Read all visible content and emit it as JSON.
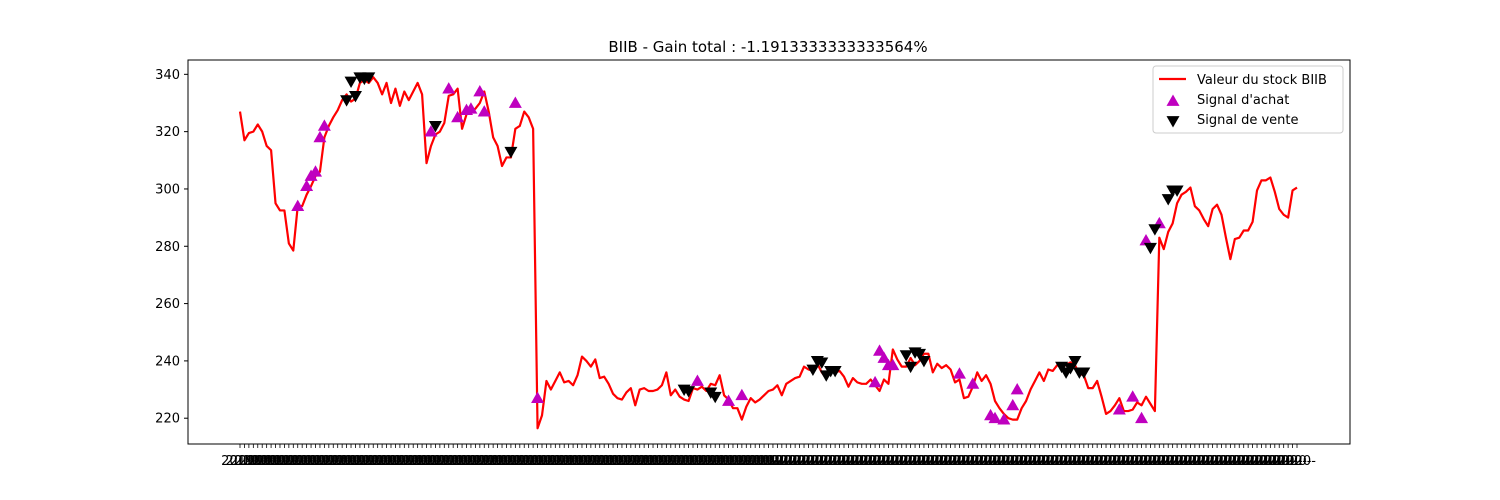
{
  "chart_data": {
    "type": "line",
    "title": "BIIB - Gain total : -1.1913333333333564%",
    "xlabel": "",
    "ylabel": "",
    "ylim": [
      211,
      345
    ],
    "yticks": [
      220,
      240,
      260,
      280,
      300,
      320,
      340
    ],
    "x_tick_labels_visible": [
      "2019-",
      "2020-"
    ],
    "legend_position": "top-right",
    "colors": {
      "line": "#ff0000",
      "buy": "#bf00bf",
      "sell": "#000000",
      "legend_border": "#cccccc"
    },
    "series": [
      {
        "name": "Valeur du stock BIIB",
        "kind": "line",
        "values": [
          327,
          317,
          319.5,
          320,
          322.5,
          320,
          315,
          313.5,
          295,
          292.5,
          292.5,
          281,
          278.5,
          294,
          294,
          298,
          301,
          304.5,
          306,
          318,
          322,
          325,
          327.5,
          331,
          333,
          330.5,
          331.5,
          337,
          338,
          337,
          339,
          337,
          333,
          337,
          330,
          335,
          329,
          334,
          331,
          334,
          337,
          333,
          309,
          315,
          319,
          320,
          323,
          332.5,
          333,
          335,
          321,
          326,
          327,
          328,
          330,
          334,
          327,
          318,
          315,
          308,
          311,
          311,
          321,
          322,
          327,
          325,
          321,
          216.5,
          221,
          233,
          230,
          233,
          236,
          232.5,
          233,
          231.5,
          235,
          241.5,
          240,
          238,
          240.5,
          234,
          234.5,
          232,
          228.5,
          227,
          226.5,
          229,
          230.5,
          224.5,
          230,
          230.5,
          229.5,
          229.5,
          230,
          231.5,
          236,
          228,
          230,
          227.5,
          226.5,
          226,
          230.5,
          230,
          231,
          229.5,
          232,
          231.5,
          235,
          228,
          226.5,
          223.5,
          223.5,
          219.5,
          224,
          227,
          225.5,
          226.5,
          228,
          229.5,
          230,
          231.5,
          228,
          232,
          233,
          234,
          234.5,
          238,
          237,
          236.5,
          239,
          236,
          234,
          237,
          236,
          236.5,
          234.5,
          231,
          234,
          232.5,
          232,
          232,
          233.5,
          231.5,
          229.5,
          233.5,
          232,
          244,
          240.5,
          238,
          238,
          241,
          238.5,
          240,
          242.5,
          242.5,
          236,
          239,
          237.5,
          238.5,
          237,
          232.5,
          233.5,
          227,
          227.5,
          231,
          236,
          233,
          235,
          232,
          226,
          223.5,
          221.5,
          220,
          219.5,
          219.5,
          223.5,
          226,
          230,
          233,
          236,
          233,
          237,
          236.5,
          238.5,
          238,
          238.5,
          239.5,
          238.5,
          235.5,
          235,
          230.5,
          230.5,
          233,
          227.5,
          221.5,
          222.5,
          224.5,
          227,
          222.5,
          222.5,
          223,
          225.5,
          224.5,
          227.5,
          225,
          222.5,
          283,
          279,
          285,
          288,
          295,
          298,
          299,
          300.5,
          294,
          292.5,
          289.5,
          287,
          293,
          294.5,
          291,
          283,
          275.5,
          282.5,
          283,
          285.5,
          285.5,
          288.5,
          299.5,
          303,
          303,
          304,
          299,
          293,
          291,
          290,
          299.5,
          300.5
        ]
      },
      {
        "name": "Signal d'achat",
        "kind": "marker",
        "marker": "triangle-up",
        "points": [
          [
            13,
            294
          ],
          [
            15,
            301
          ],
          [
            16,
            304.5
          ],
          [
            17,
            306
          ],
          [
            18,
            318
          ],
          [
            19,
            322
          ],
          [
            43,
            320
          ],
          [
            47,
            335
          ],
          [
            49,
            325
          ],
          [
            51,
            327.5
          ],
          [
            52,
            328
          ],
          [
            54,
            334
          ],
          [
            55,
            327
          ],
          [
            62,
            330
          ],
          [
            67,
            227
          ],
          [
            103,
            233
          ],
          [
            110,
            226
          ],
          [
            113,
            228
          ],
          [
            143,
            232.5
          ],
          [
            144,
            243.5
          ],
          [
            145,
            241
          ],
          [
            146,
            238.5
          ],
          [
            147,
            238.5
          ],
          [
            162,
            235.5
          ],
          [
            165,
            232
          ],
          [
            169,
            221
          ],
          [
            170,
            220
          ],
          [
            172,
            219.5
          ],
          [
            174,
            224.5
          ],
          [
            175,
            230
          ],
          [
            198,
            223
          ],
          [
            201,
            227.5
          ],
          [
            203,
            220
          ],
          [
            204,
            282
          ],
          [
            207,
            288
          ]
        ]
      },
      {
        "name": "Signal de vente",
        "kind": "marker",
        "marker": "triangle-down",
        "points": [
          [
            24,
            331
          ],
          [
            25,
            337.5
          ],
          [
            26,
            332.5
          ],
          [
            27,
            339
          ],
          [
            28,
            338.5
          ],
          [
            29,
            339
          ],
          [
            44,
            322
          ],
          [
            61,
            313
          ],
          [
            100,
            230
          ],
          [
            101,
            229.5
          ],
          [
            106,
            229
          ],
          [
            107,
            227.5
          ],
          [
            129,
            237
          ],
          [
            130,
            240
          ],
          [
            131,
            239.5
          ],
          [
            132,
            235
          ],
          [
            133,
            236.5
          ],
          [
            134,
            236.5
          ],
          [
            150,
            242
          ],
          [
            151,
            238
          ],
          [
            152,
            243
          ],
          [
            153,
            242.5
          ],
          [
            154,
            240
          ],
          [
            185,
            238
          ],
          [
            186,
            236
          ],
          [
            187,
            237.5
          ],
          [
            188,
            240
          ],
          [
            189,
            236
          ],
          [
            190,
            236
          ],
          [
            205,
            279.5
          ],
          [
            206,
            286
          ],
          [
            209,
            296.5
          ],
          [
            210,
            299.5
          ],
          [
            211,
            299.5
          ]
        ]
      }
    ]
  }
}
